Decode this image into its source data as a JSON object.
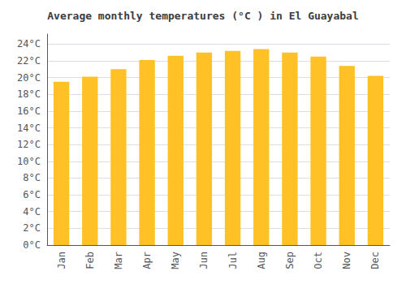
{
  "chart_data": {
    "type": "bar",
    "title": "Average monthly temperatures (°C ) in El Guayabal",
    "categories": [
      "Jan",
      "Feb",
      "Mar",
      "Apr",
      "May",
      "Jun",
      "Jul",
      "Aug",
      "Sep",
      "Oct",
      "Nov",
      "Dec"
    ],
    "values": [
      19.5,
      20.1,
      21.0,
      22.1,
      22.6,
      23.0,
      23.2,
      23.4,
      23.0,
      22.5,
      21.4,
      20.2
    ],
    "color": "#FFC125",
    "ylim": [
      0,
      25.2
    ],
    "yticks": [
      {
        "value": 0,
        "label": "0°C"
      },
      {
        "value": 2,
        "label": "2°C"
      },
      {
        "value": 4,
        "label": "4°C"
      },
      {
        "value": 6,
        "label": "6°C"
      },
      {
        "value": 8,
        "label": "8°C"
      },
      {
        "value": 10,
        "label": "10°C"
      },
      {
        "value": 12,
        "label": "12°C"
      },
      {
        "value": 14,
        "label": "14°C"
      },
      {
        "value": 16,
        "label": "16°C"
      },
      {
        "value": 18,
        "label": "18°C"
      },
      {
        "value": 20,
        "label": "20°C"
      },
      {
        "value": 22,
        "label": "22°C"
      },
      {
        "value": 24,
        "label": "24°C"
      }
    ],
    "grid": true
  }
}
